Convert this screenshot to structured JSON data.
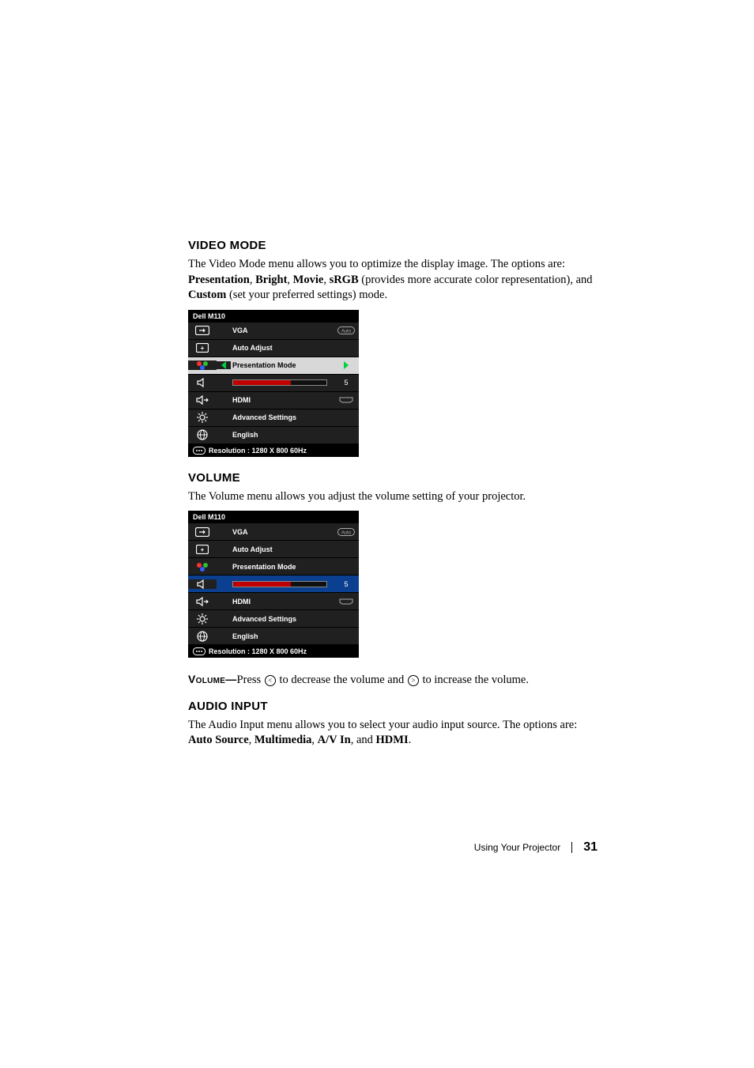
{
  "sections": {
    "video_mode": {
      "heading": "VIDEO MODE",
      "para_lead": "The Video Mode menu allows you to optimize the display image. The options are: ",
      "opts": [
        "Presentation",
        "Bright",
        "Movie",
        "sRGB"
      ],
      "opts_tail": " (provides more accurate color representation), and ",
      "opt_custom": "Custom",
      "opts_tail2": " (set your preferred settings) mode."
    },
    "volume": {
      "heading": "VOLUME",
      "para": "The Volume menu allows you adjust the volume setting of your projector.",
      "vol_label": "Volume—",
      "vol_text1": "Press ",
      "vol_text2": " to decrease the volume and ",
      "vol_text3": " to increase the volume."
    },
    "audio_input": {
      "heading": "AUDIO INPUT",
      "para_lead": "The Audio Input menu allows you to select your audio input source. The options are: ",
      "opts": [
        "Auto Source",
        "Multimedia",
        "A/V In"
      ],
      "opt_join": ", and ",
      "opt_last": "HDMI",
      "tail": "."
    }
  },
  "osd": {
    "brand": "Dell  M110",
    "items": {
      "vga": "VGA",
      "auto_adjust": "Auto Adjust",
      "presentation_mode": "Presentation Mode",
      "hdmi": "HDMI",
      "advanced_settings": "Advanced Settings",
      "english": "English"
    },
    "slider_value": "5",
    "slider_fill_pct": 62,
    "footer": "Resolution : 1280 X 800 60Hz",
    "colors": {
      "bg": "#000000",
      "row": "#202020",
      "sel_blue": "#0b3f8f",
      "sel_light": "#d8d8d8",
      "arrow_green": "#00d040",
      "slider_fill": "#c00000",
      "icon_orange": "#ff8c00"
    }
  },
  "footer": {
    "text": "Using Your Projector",
    "page": "31"
  }
}
